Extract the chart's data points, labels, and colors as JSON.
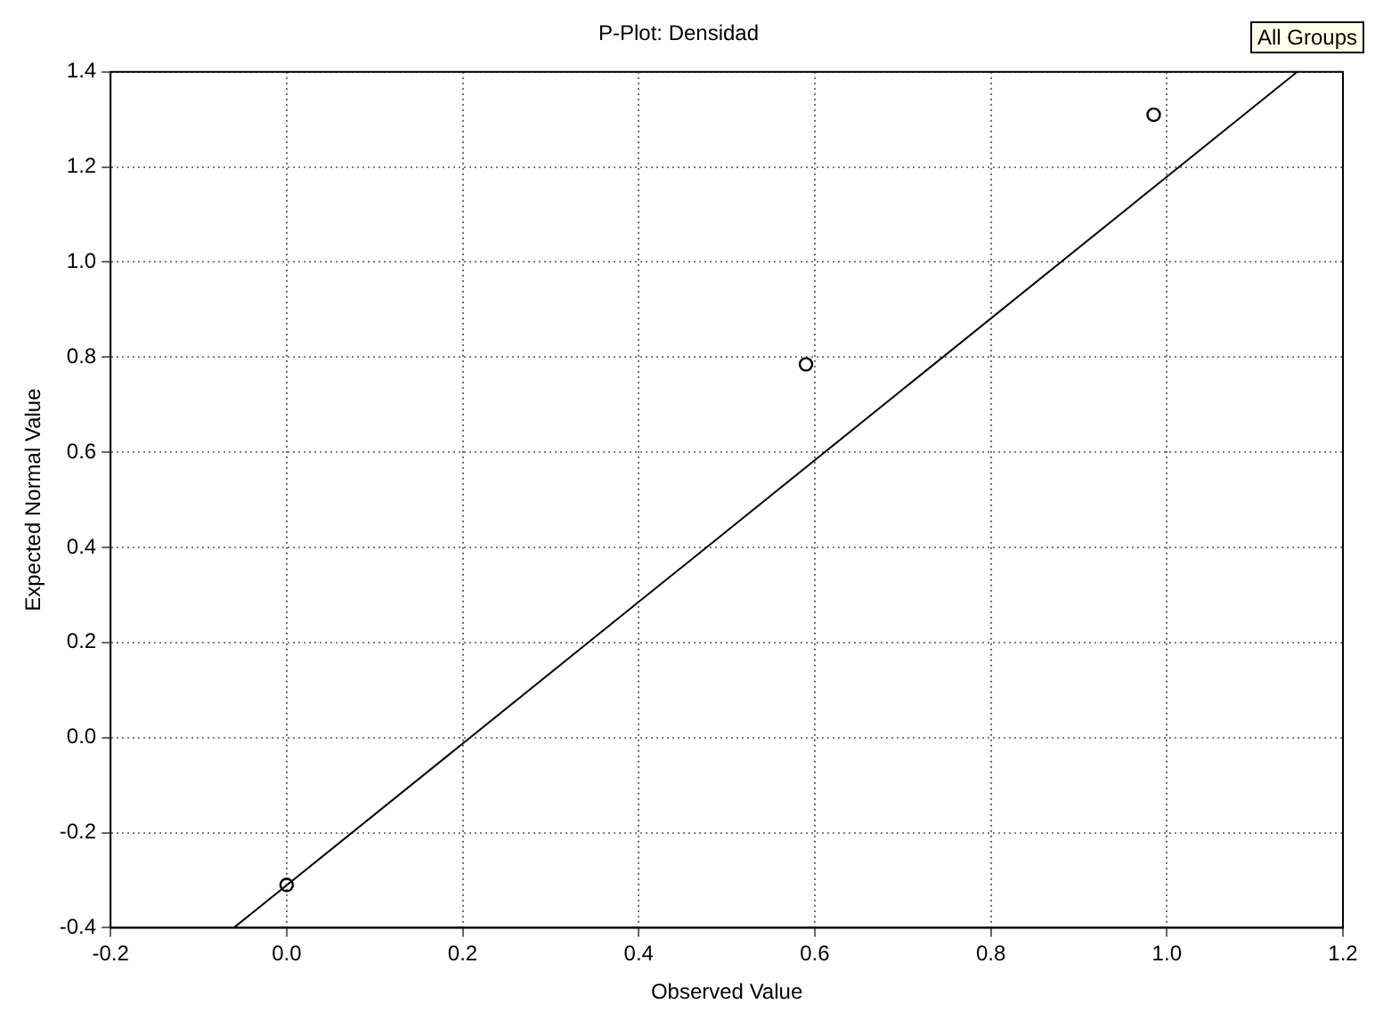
{
  "chart_data": {
    "type": "scatter",
    "title": "P-Plot: Densidad",
    "xlabel": "Observed Value",
    "ylabel": "Expected Normal Value",
    "x": [
      0.0,
      0.59,
      0.985
    ],
    "series": [
      {
        "color": "#000000",
        "values": [
          -0.31,
          0.785,
          1.31
        ],
        "marker": "circle"
      },
      {
        "type": "line",
        "color": "#000000",
        "x": [
          -0.06,
          1.148
        ],
        "values": [
          -0.4,
          1.4
        ],
        "marker": "none"
      }
    ],
    "xlim": [
      -0.2,
      1.2
    ],
    "xticks": [
      {
        "value": -0.2,
        "label": "-0.2"
      },
      {
        "value": 0,
        "label": "0.0"
      },
      {
        "value": 0.2,
        "label": "0.2"
      },
      {
        "value": 0.4,
        "label": "0.4"
      },
      {
        "value": 0.6,
        "label": "0.6"
      },
      {
        "value": 0.8,
        "label": "0.8"
      },
      {
        "value": 1,
        "label": "1.0"
      },
      {
        "value": 1.2,
        "label": "1.2"
      }
    ],
    "ylim": [
      -0.4,
      1.4
    ],
    "yticks": [
      {
        "value": -0.4,
        "label": "-0.4"
      },
      {
        "value": -0.2,
        "label": "-0.2"
      },
      {
        "value": 0,
        "label": "0.0"
      },
      {
        "value": 0.2,
        "label": "0.2"
      },
      {
        "value": 0.4,
        "label": "0.4"
      },
      {
        "value": 0.6,
        "label": "0.6"
      },
      {
        "value": 0.8,
        "label": "0.8"
      },
      {
        "value": 1,
        "label": "1.0"
      },
      {
        "value": 1.2,
        "label": "1.2"
      },
      {
        "value": 1.4,
        "label": "1.4"
      }
    ],
    "grid": true,
    "legend": false,
    "annotations": [
      "All Groups"
    ]
  }
}
